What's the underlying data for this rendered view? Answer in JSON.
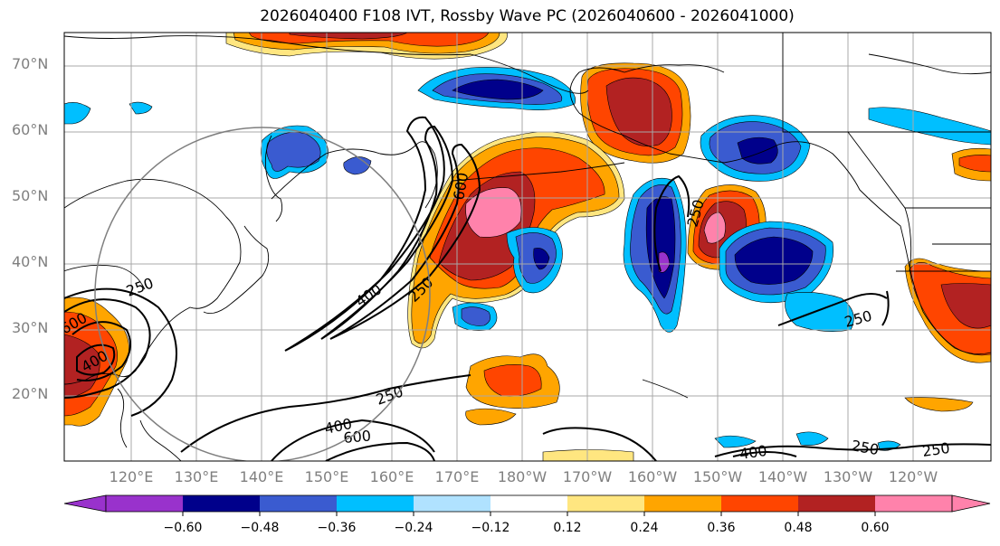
{
  "title": "2026040400 F108 IVT, Rossby Wave PC (2026040600 - 2026041000)",
  "lat_labels": [
    "70°N",
    "60°N",
    "50°N",
    "40°N",
    "30°N",
    "20°N"
  ],
  "lon_labels": [
    "120°E",
    "130°E",
    "140°E",
    "150°E",
    "160°E",
    "170°E",
    "180°W",
    "170°W",
    "160°W",
    "150°W",
    "140°W",
    "130°W",
    "120°W"
  ],
  "contour_labels": [
    "600",
    "400",
    "250",
    "600",
    "400",
    "250",
    "250",
    "250",
    "250",
    "250",
    "400",
    "600",
    "400",
    "250",
    "250",
    "400",
    "250",
    "250"
  ],
  "colorbar": {
    "tick_labels": [
      "−0.60",
      "−0.48",
      "−0.36",
      "−0.24",
      "−0.12",
      "0.12",
      "0.24",
      "0.36",
      "0.48",
      "0.60"
    ],
    "colors": [
      "#9932cc",
      "#00008b",
      "#3a5bd0",
      "#00bfff",
      "#b0e2ff",
      "#ffffff",
      "#ffe680",
      "#ffa500",
      "#ff4500",
      "#b22222",
      "#ff82ab"
    ]
  },
  "colors": {
    "neg_extreme": "#9932cc",
    "neg_strong": "#00008b",
    "neg_med": "#3a5bd0",
    "neg_weak": "#00bfff",
    "neg_faint": "#b0e2ff",
    "pos_faint": "#ffe680",
    "pos_weak": "#ffa500",
    "pos_med": "#ff4500",
    "pos_strong": "#b22222",
    "pos_extreme": "#ff82ab"
  }
}
